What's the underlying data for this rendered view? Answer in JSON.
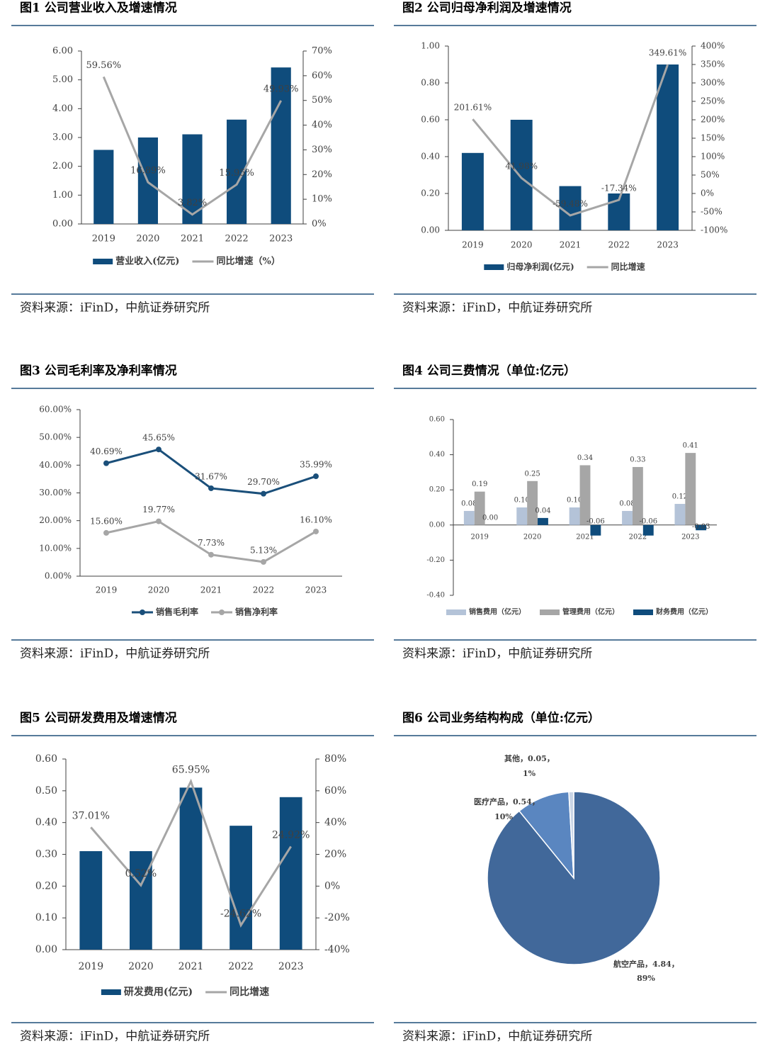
{
  "chart_data": [
    {
      "type": "combo",
      "title": "图1  公司营业收入及增速情况",
      "source": "资料来源：iFinD，中航证券研究所",
      "categories": [
        "2019",
        "2020",
        "2021",
        "2022",
        "2023"
      ],
      "series": [
        {
          "name": "营业收入(亿元)",
          "type": "bar",
          "color": "#0f4c7c",
          "values": [
            2.57,
            3.0,
            3.11,
            3.62,
            5.43
          ]
        },
        {
          "name": "同比增速（%）",
          "type": "line",
          "axis": "y2",
          "color": "#a6a6a6",
          "values": [
            59.56,
            16.89,
            3.82,
            15.95,
            49.93
          ],
          "value_labels": [
            "59.56%",
            "16.89%",
            "3.82%",
            "15.95%",
            "49.93%"
          ]
        }
      ],
      "ylim": [
        0,
        6
      ],
      "yticks": [
        {
          "value": 0,
          "label": "0.00"
        },
        {
          "value": 1,
          "label": "1.00"
        },
        {
          "value": 2,
          "label": "2.00"
        },
        {
          "value": 3,
          "label": "3.00"
        },
        {
          "value": 4,
          "label": "4.00"
        },
        {
          "value": 5,
          "label": "5.00"
        },
        {
          "value": 6,
          "label": "6.00"
        }
      ],
      "y2lim": [
        0,
        70
      ],
      "y2ticks": [
        {
          "value": 0,
          "label": "0%"
        },
        {
          "value": 10,
          "label": "10%"
        },
        {
          "value": 20,
          "label": "20%"
        },
        {
          "value": 30,
          "label": "30%"
        },
        {
          "value": 40,
          "label": "40%"
        },
        {
          "value": 50,
          "label": "50%"
        },
        {
          "value": 60,
          "label": "60%"
        },
        {
          "value": 70,
          "label": "70%"
        }
      ]
    },
    {
      "type": "combo",
      "title": "图2  公司归母净利润及增速情况",
      "source": "资料来源：iFinD，中航证券研究所",
      "categories": [
        "2019",
        "2020",
        "2021",
        "2022",
        "2023"
      ],
      "series": [
        {
          "name": "归母净利润(亿元)",
          "type": "bar",
          "color": "#0f4c7c",
          "values": [
            0.42,
            0.6,
            0.24,
            0.2,
            0.9
          ]
        },
        {
          "name": "同比增速",
          "type": "line",
          "axis": "y2",
          "color": "#a6a6a6",
          "values": [
            201.61,
            41.98,
            -59.48,
            -17.34,
            349.61
          ],
          "value_labels": [
            "201.61%",
            "41.98%",
            "-59.48%",
            "-17.34%",
            "349.61%"
          ]
        }
      ],
      "ylim": [
        0,
        1
      ],
      "yticks": [
        {
          "value": 0,
          "label": "0.00"
        },
        {
          "value": 0.2,
          "label": "0.20"
        },
        {
          "value": 0.4,
          "label": "0.40"
        },
        {
          "value": 0.6,
          "label": "0.60"
        },
        {
          "value": 0.8,
          "label": "0.80"
        },
        {
          "value": 1,
          "label": "1.00"
        }
      ],
      "y2lim": [
        -100,
        400
      ],
      "y2ticks": [
        {
          "value": -100,
          "label": "-100%"
        },
        {
          "value": -50,
          "label": "-50%"
        },
        {
          "value": 0,
          "label": "0%"
        },
        {
          "value": 50,
          "label": "50%"
        },
        {
          "value": 100,
          "label": "100%"
        },
        {
          "value": 150,
          "label": "150%"
        },
        {
          "value": 200,
          "label": "200%"
        },
        {
          "value": 250,
          "label": "250%"
        },
        {
          "value": 300,
          "label": "300%"
        },
        {
          "value": 350,
          "label": "350%"
        },
        {
          "value": 400,
          "label": "400%"
        }
      ]
    },
    {
      "type": "line",
      "title": "图3  公司毛利率及净利率情况",
      "source": "资料来源：iFinD，中航证券研究所",
      "categories": [
        "2019",
        "2020",
        "2021",
        "2022",
        "2023"
      ],
      "series": [
        {
          "name": "销售毛利率",
          "color": "#1a4f7a",
          "marker": true,
          "values": [
            40.69,
            45.65,
            31.67,
            29.7,
            35.99
          ],
          "value_labels": [
            "40.69%",
            "45.65%",
            "31.67%",
            "29.70%",
            "35.99%"
          ]
        },
        {
          "name": "销售净利率",
          "color": "#a6a6a6",
          "marker": true,
          "values": [
            15.6,
            19.77,
            7.73,
            5.13,
            16.1
          ],
          "value_labels": [
            "15.60%",
            "19.77%",
            "7.73%",
            "5.13%",
            "16.10%"
          ]
        }
      ],
      "ylim": [
        0,
        60
      ],
      "yticks": [
        {
          "value": 0,
          "label": "0.00%"
        },
        {
          "value": 10,
          "label": "10.00%"
        },
        {
          "value": 20,
          "label": "20.00%"
        },
        {
          "value": 30,
          "label": "30.00%"
        },
        {
          "value": 40,
          "label": "40.00%"
        },
        {
          "value": 50,
          "label": "50.00%"
        },
        {
          "value": 60,
          "label": "60.00%"
        }
      ]
    },
    {
      "type": "bar",
      "title": "图4  公司三费情况（单位:亿元）",
      "source": "资料来源：iFinD，中航证券研究所",
      "categories": [
        "2019",
        "2020",
        "2021",
        "2022",
        "2023"
      ],
      "series": [
        {
          "name": "销售费用（亿元）",
          "color": "#b4c3d8",
          "values": [
            0.08,
            0.1,
            0.1,
            0.08,
            0.12
          ],
          "value_labels": [
            "0.08",
            "0.10",
            "0.10",
            "0.08",
            "0.12"
          ]
        },
        {
          "name": "管理费用（亿元）",
          "color": "#a6a6a6",
          "values": [
            0.19,
            0.25,
            0.34,
            0.33,
            0.41
          ],
          "value_labels": [
            "0.19",
            "0.25",
            "0.34",
            "0.33",
            "0.41"
          ]
        },
        {
          "name": "财务费用（亿元）",
          "color": "#0f4c7c",
          "values": [
            0.0,
            0.04,
            -0.06,
            -0.06,
            -0.03
          ],
          "value_labels": [
            "0.00",
            "0.04",
            "-0.06",
            "-0.06",
            "-0.03"
          ]
        }
      ],
      "ylim": [
        -0.4,
        0.6
      ],
      "yticks": [
        {
          "value": -0.4,
          "label": "-0.40"
        },
        {
          "value": -0.2,
          "label": "-0.20"
        },
        {
          "value": 0,
          "label": "0.00"
        },
        {
          "value": 0.2,
          "label": "0.20"
        },
        {
          "value": 0.4,
          "label": "0.40"
        },
        {
          "value": 0.6,
          "label": "0.60"
        }
      ]
    },
    {
      "type": "combo",
      "title": "图5  公司研发费用及增速情况",
      "source": "资料来源：iFinD，中航证券研究所",
      "categories": [
        "2019",
        "2020",
        "2021",
        "2022",
        "2023"
      ],
      "series": [
        {
          "name": "研发费用(亿元)",
          "type": "bar",
          "color": "#0f4c7c",
          "values": [
            0.31,
            0.31,
            0.51,
            0.39,
            0.48
          ]
        },
        {
          "name": "同比增速",
          "type": "line",
          "axis": "y2",
          "color": "#a6a6a6",
          "values": [
            37.01,
            0.52,
            65.95,
            -24.62,
            24.92
          ],
          "value_labels": [
            "37.01%",
            "0.52%",
            "65.95%",
            "-24.62%",
            "24.92%"
          ]
        }
      ],
      "ylim": [
        0,
        0.6
      ],
      "yticks": [
        {
          "value": 0,
          "label": "0.00"
        },
        {
          "value": 0.1,
          "label": "0.10"
        },
        {
          "value": 0.2,
          "label": "0.20"
        },
        {
          "value": 0.3,
          "label": "0.30"
        },
        {
          "value": 0.4,
          "label": "0.40"
        },
        {
          "value": 0.5,
          "label": "0.50"
        },
        {
          "value": 0.6,
          "label": "0.60"
        }
      ],
      "y2lim": [
        -40,
        80
      ],
      "y2ticks": [
        {
          "value": -40,
          "label": "-40%"
        },
        {
          "value": -20,
          "label": "-20%"
        },
        {
          "value": 0,
          "label": "0%"
        },
        {
          "value": 20,
          "label": "20%"
        },
        {
          "value": 40,
          "label": "40%"
        },
        {
          "value": 60,
          "label": "60%"
        },
        {
          "value": 80,
          "label": "80%"
        }
      ]
    },
    {
      "type": "pie",
      "title": "图6  公司业务结构构成（单位:亿元）",
      "source": "资料来源：iFinD，中航证券研究所",
      "values": [
        4.84,
        0.54,
        0.05
      ],
      "colors": [
        "#41689a",
        "#5a86c0",
        "#c9d5e6"
      ],
      "value_labels": [
        [
          "航空产品，4.84，",
          "89%"
        ],
        [
          "医疗产品，0.54，",
          "10%"
        ],
        [
          "其他，0.05，",
          "1%"
        ]
      ]
    }
  ]
}
